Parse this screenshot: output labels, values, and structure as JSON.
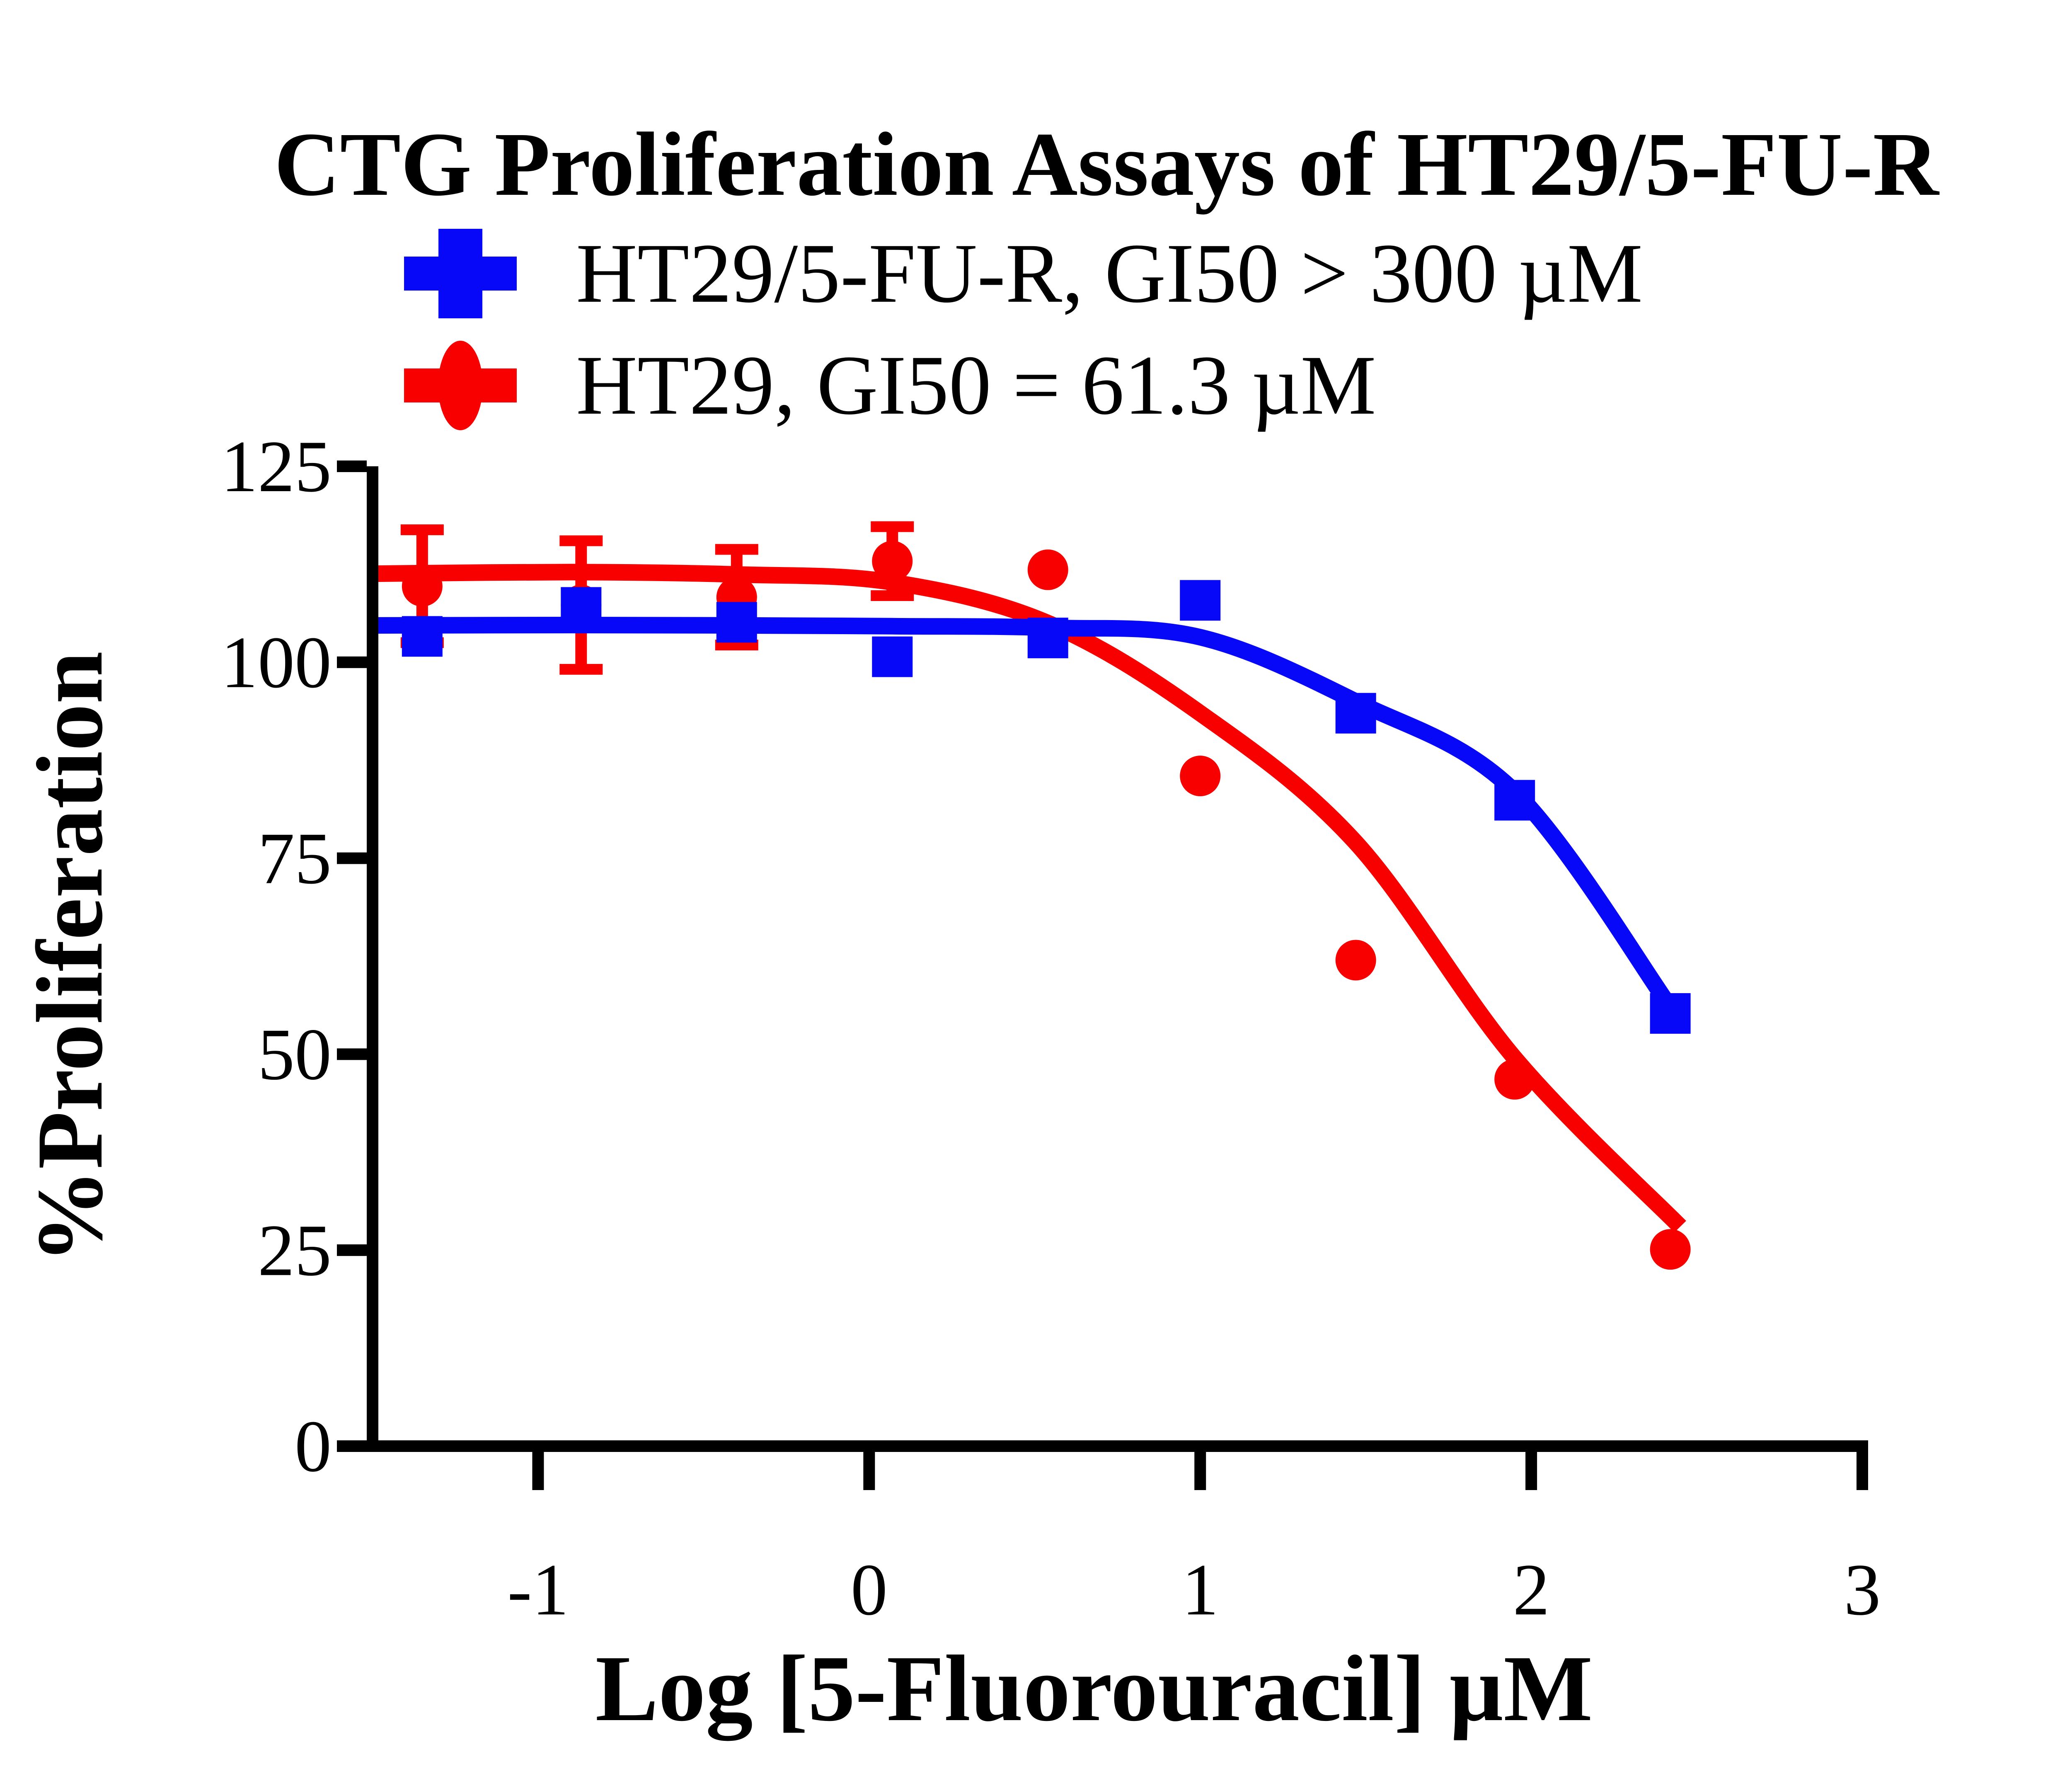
{
  "title": "CTG Proliferation Assays of HT29/5-FU-R",
  "legend": {
    "items": [
      {
        "label": "HT29/5-FU-R, GI50 > 300 µM",
        "color": "#0808F8",
        "marker": "square"
      },
      {
        "label": "HT29, GI50 = 61.3 µM",
        "color": "#F80000",
        "marker": "circle"
      }
    ]
  },
  "axes": {
    "x": {
      "label": "Log [5-Fluorouracil] µM",
      "ticks": [
        -1,
        0,
        1,
        2,
        3
      ],
      "tick_labels": [
        "-1",
        "0",
        "1",
        "2",
        "3"
      ]
    },
    "y": {
      "label": "%Proliferation",
      "ticks": [
        0,
        25,
        50,
        75,
        100,
        125
      ],
      "tick_labels": [
        "0",
        "25",
        "50",
        "75",
        "100",
        "125"
      ]
    }
  },
  "colors": {
    "blue": "#0808F8",
    "red": "#F80000",
    "axis": "#000000",
    "background": "#ffffff"
  },
  "chart_data": {
    "type": "scatter",
    "title": "CTG Proliferation Assays of HT29/5-FU-R",
    "xlabel": "Log [5-Fluorouracil] µM",
    "ylabel": "%Proliferation",
    "xlim": [
      -1.5,
      3.0
    ],
    "ylim": [
      0,
      125
    ],
    "grid": false,
    "legend_position": "top-left",
    "x": [
      -1.35,
      -0.87,
      -0.4,
      0.07,
      0.54,
      1.0,
      1.47,
      1.95,
      2.42
    ],
    "series": [
      {
        "name": "HT29/5-FU-R, GI50 > 300 µM",
        "color": "#0808F8",
        "marker": "square",
        "values": [
          103.3,
          107.0,
          105.1,
          100.7,
          103.1,
          107.9,
          93.5,
          82.4,
          55.2
        ],
        "errors": [
          0,
          0,
          0,
          0,
          0,
          0,
          0,
          0,
          0
        ],
        "fit_curve": [
          [
            -1.494,
            104.7
          ],
          [
            -0.9,
            104.75
          ],
          [
            -0.4,
            104.7
          ],
          [
            0.07,
            104.6
          ],
          [
            0.54,
            104.4
          ],
          [
            1.0,
            103.2
          ],
          [
            1.47,
            95.0
          ],
          [
            1.95,
            83.5
          ],
          [
            2.42,
            56.0
          ]
        ]
      },
      {
        "name": "HT29, GI50 = 61.3 µM",
        "color": "#F80000",
        "marker": "circle",
        "values": [
          109.7,
          107.3,
          108.3,
          112.9,
          111.8,
          85.5,
          62.0,
          46.8,
          25.1
        ],
        "errors": [
          7.2,
          8.2,
          6.1,
          4.4,
          0,
          0,
          0,
          0,
          0
        ],
        "fit_curve": [
          [
            -1.494,
            111.3
          ],
          [
            -0.9,
            111.5
          ],
          [
            -0.4,
            111.2
          ],
          [
            0.07,
            110.2
          ],
          [
            0.54,
            105.0
          ],
          [
            1.0,
            93.5
          ],
          [
            1.47,
            77.0
          ],
          [
            1.95,
            49.5
          ],
          [
            2.45,
            28.0
          ]
        ]
      }
    ]
  }
}
